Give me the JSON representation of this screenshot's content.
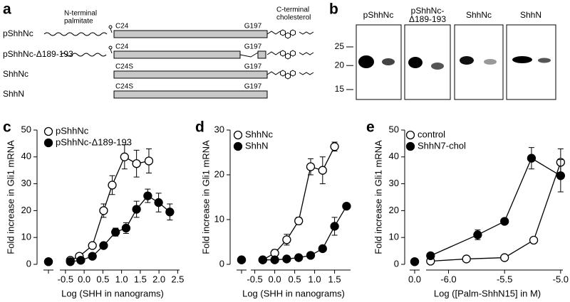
{
  "panel_labels": [
    "a",
    "b",
    "c",
    "d",
    "e"
  ],
  "diagram": {
    "left_label": [
      "N-terminal",
      "palmitate"
    ],
    "right_label": [
      "C-terminal",
      "cholesterol"
    ],
    "constructs": [
      {
        "name": "pShhNc",
        "start": "C24",
        "end": "G197"
      },
      {
        "name": "pShhNc-Δ189-193",
        "start": "C24",
        "end": "G197"
      },
      {
        "name": "ShhNc",
        "start": "C24S",
        "end": "G197"
      },
      {
        "name": "ShhN",
        "start": "C24S",
        "end": "G197"
      }
    ]
  },
  "blot": {
    "lanes": [
      [
        "pShhNc"
      ],
      [
        "pShhNc-",
        "Δ189-193"
      ],
      [
        "ShhNc"
      ],
      [
        "ShhN"
      ]
    ],
    "markers": [
      25,
      20,
      15
    ]
  },
  "chart_data": [
    {
      "type": "line",
      "y_label": "Fold increase in Gli1 mRNA",
      "x_label": "Log (SHH in nanograms)",
      "xlim": [
        -0.65,
        2.55
      ],
      "ylim": [
        0,
        50
      ],
      "xticks": [
        -0.5,
        {
          "value": 0,
          "label": "0.0"
        },
        0.5,
        {
          "value": 1,
          "label": "1.0"
        },
        1.5,
        {
          "value": 2,
          "label": "2.0"
        },
        2.5
      ],
      "yticks": [
        0,
        10,
        20,
        30,
        40,
        50
      ],
      "series": [
        {
          "name": "pShhNc",
          "marker": "open",
          "color": "#000000",
          "control": 1,
          "x": [
            -0.37,
            -0.13,
            0.22,
            0.52,
            0.75,
            1.08,
            1.4,
            1.73
          ],
          "values": [
            1.5,
            3,
            7,
            20,
            29.5,
            40,
            37.5,
            38.5
          ],
          "errors": [
            0.5,
            0.8,
            1,
            2.5,
            3.5,
            4.5,
            5,
            4.5
          ]
        },
        {
          "name": "pShhNc-Δ189-193",
          "marker": "filled",
          "color": "#000000",
          "control": 1,
          "x": [
            -0.37,
            -0.09,
            0.22,
            0.52,
            0.84,
            1.12,
            1.4,
            1.7,
            1.99,
            2.29
          ],
          "values": [
            1,
            1.5,
            3,
            7,
            12,
            13.5,
            20.5,
            25.5,
            23,
            19.5
          ],
          "errors": [
            0.3,
            0.5,
            0.6,
            1,
            1.5,
            2,
            3,
            2.5,
            3.5,
            3
          ]
        }
      ]
    },
    {
      "type": "line",
      "y_label": "Fold increase in Gli1 mRNA",
      "x_label": "Log (SHH in nanograms)",
      "xlim": [
        -0.6,
        1.9
      ],
      "ylim": [
        0,
        30
      ],
      "xticks": [
        -0.5,
        {
          "value": 0,
          "label": "0.0"
        },
        0.5,
        {
          "value": 1,
          "label": "1.0"
        },
        1.5
      ],
      "yticks": [
        0,
        10,
        20,
        30
      ],
      "series": [
        {
          "name": "ShhNc",
          "marker": "open",
          "color": "#000000",
          "control": 1,
          "x": [
            -0.3,
            0.0,
            0.3,
            0.6,
            0.9,
            1.2,
            1.5
          ],
          "values": [
            1,
            2.5,
            5.5,
            9.7,
            21.8,
            21,
            26.3
          ],
          "errors": [
            0.3,
            0.8,
            1.2,
            0.8,
            1.8,
            3,
            1
          ]
        },
        {
          "name": "ShhN",
          "marker": "filled",
          "color": "#000000",
          "control": 1,
          "x": [
            -0.3,
            0.0,
            0.3,
            0.6,
            0.9,
            1.2,
            1.5,
            1.8
          ],
          "values": [
            1,
            1,
            1.2,
            1.5,
            2,
            3.5,
            8.5,
            13
          ],
          "errors": [
            0.2,
            0.2,
            0.2,
            0.2,
            0.2,
            0.5,
            2,
            0.5
          ]
        }
      ]
    },
    {
      "type": "line",
      "y_label": "Fold increase in Gli1 mRNA",
      "x_label": "Log ([Palm-ShhN15] in M)",
      "xlim": [
        -6.2,
        -4.98
      ],
      "ylim": [
        0,
        50
      ],
      "control_label": "0.0",
      "xticks": [
        {
          "value": -6,
          "label": "-6.0"
        },
        -5.5,
        {
          "value": -5,
          "label": "-5.0"
        }
      ],
      "yticks": [
        0,
        10,
        20,
        30,
        40,
        50
      ],
      "series": [
        {
          "name": "control",
          "marker": "open",
          "color": "#000000",
          "control": 1,
          "x": [
            -6.16,
            -5.84,
            -5.5,
            -5.24,
            -5.0
          ],
          "values": [
            1.2,
            2,
            2.5,
            9,
            38
          ],
          "errors": [
            0.3,
            0.3,
            0.4,
            0.8,
            5
          ]
        },
        {
          "name": "ShhN7-chol",
          "marker": "filled",
          "color": "#000000",
          "control": 1,
          "x": [
            -6.16,
            -5.74,
            -5.5,
            -5.26,
            -5.0
          ],
          "values": [
            3.2,
            11,
            16,
            39.5,
            33
          ],
          "errors": [
            0.6,
            1.8,
            1,
            4,
            6
          ]
        }
      ]
    }
  ]
}
